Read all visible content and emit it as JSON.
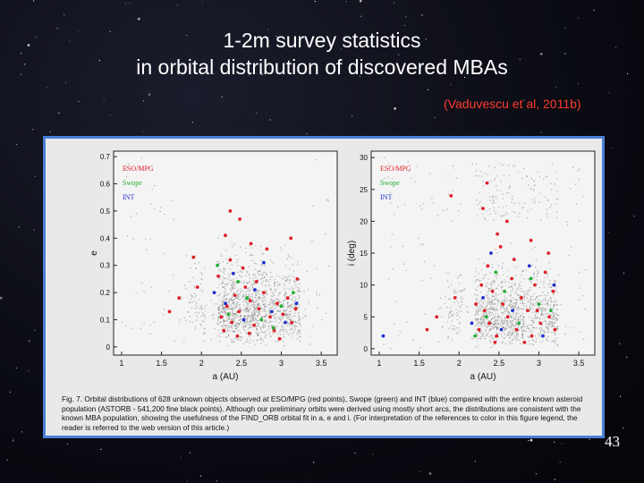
{
  "slide": {
    "title_line1": "1-2m survey statistics",
    "title_line2": "in orbital distribution of discovered MBAs",
    "citation": "(Vaduvescu et al, 2011b)",
    "page_number": "43"
  },
  "figure": {
    "caption": "Fig. 7.  Orbital distributions of 628 unknown objects observed at ESO/MPG (red points), Swope (green) and INT (blue) compared with the entire known asteroid population (ASTORB - 541,200 fine black points). Although our preliminary orbits were derived using mostly short arcs, the distributions are consistent with the known MBA population, showing the usefulness of the FIND_ORB orbital fit in a, e and i. (For interpretation of the references to color in this figure legend, the reader is referred to the web version of this article.)"
  },
  "colors": {
    "eso": "#e0202a",
    "swope": "#22b030",
    "int": "#2030d0",
    "background_points": "#7a7a7a",
    "frame": "#4a7fd6"
  },
  "chart_data": [
    {
      "type": "scatter",
      "xlabel": "a (AU)",
      "ylabel": "e",
      "xlim": [
        0.9,
        3.7
      ],
      "ylim": [
        -0.03,
        0.72
      ],
      "xticks": [
        "1",
        "1.5",
        "2",
        "2.5",
        "3",
        "3.5"
      ],
      "yticks": [
        "0",
        "0.1",
        "0.2",
        "0.3",
        "0.4",
        "0.5",
        "0.6",
        "0.7"
      ],
      "legend": [
        "ESO/MPG",
        "Swope",
        "INT"
      ],
      "legend_position": "top-left",
      "series": [
        {
          "name": "ESO/MPG",
          "points": [
            [
              2.25,
              0.11
            ],
            [
              2.32,
              0.15
            ],
            [
              2.38,
              0.09
            ],
            [
              2.42,
              0.19
            ],
            [
              2.47,
              0.13
            ],
            [
              2.55,
              0.22
            ],
            [
              2.61,
              0.17
            ],
            [
              2.66,
              0.08
            ],
            [
              2.72,
              0.14
            ],
            [
              2.78,
              0.2
            ],
            [
              2.86,
              0.11
            ],
            [
              2.91,
              0.06
            ],
            [
              2.95,
              0.16
            ],
            [
              3.02,
              0.12
            ],
            [
              3.08,
              0.18
            ],
            [
              3.13,
              0.09
            ],
            [
              3.18,
              0.14
            ],
            [
              2.21,
              0.26
            ],
            [
              2.36,
              0.32
            ],
            [
              2.52,
              0.29
            ],
            [
              2.69,
              0.24
            ],
            [
              2.36,
              0.5
            ],
            [
              2.48,
              0.47
            ],
            [
              2.3,
              0.41
            ],
            [
              2.62,
              0.38
            ],
            [
              1.9,
              0.33
            ],
            [
              1.95,
              0.22
            ],
            [
              1.72,
              0.18
            ],
            [
              1.6,
              0.13
            ],
            [
              2.82,
              0.36
            ],
            [
              3.12,
              0.4
            ],
            [
              2.45,
              0.04
            ],
            [
              2.6,
              0.05
            ],
            [
              2.28,
              0.06
            ],
            [
              2.98,
              0.03
            ],
            [
              3.2,
              0.25
            ]
          ]
        },
        {
          "name": "Swope",
          "points": [
            [
              2.34,
              0.12
            ],
            [
              2.57,
              0.18
            ],
            [
              2.75,
              0.1
            ],
            [
              3.0,
              0.15
            ],
            [
              2.46,
              0.24
            ],
            [
              2.2,
              0.3
            ],
            [
              2.9,
              0.07
            ],
            [
              3.15,
              0.2
            ]
          ]
        },
        {
          "name": "INT",
          "points": [
            [
              2.3,
              0.16
            ],
            [
              2.53,
              0.1
            ],
            [
              2.67,
              0.21
            ],
            [
              2.88,
              0.13
            ],
            [
              3.05,
              0.09
            ],
            [
              2.4,
              0.27
            ],
            [
              2.16,
              0.2
            ],
            [
              3.19,
              0.16
            ],
            [
              2.78,
              0.31
            ]
          ]
        }
      ]
    },
    {
      "type": "scatter",
      "xlabel": "a (AU)",
      "ylabel": "i (deg)",
      "xlim": [
        0.9,
        3.7
      ],
      "ylim": [
        -1,
        31
      ],
      "xticks": [
        "1",
        "1.5",
        "2",
        "2.5",
        "3",
        "3.5"
      ],
      "yticks": [
        "0",
        "5",
        "10",
        "15",
        "20",
        "25",
        "30"
      ],
      "legend": [
        "ESO/MPG",
        "Swope",
        "INT"
      ],
      "legend_position": "top-left",
      "series": [
        {
          "name": "ESO/MPG",
          "points": [
            [
              2.25,
              3
            ],
            [
              2.32,
              6
            ],
            [
              2.38,
              4
            ],
            [
              2.42,
              9
            ],
            [
              2.47,
              2
            ],
            [
              2.55,
              7
            ],
            [
              2.61,
              5
            ],
            [
              2.66,
              11
            ],
            [
              2.72,
              3
            ],
            [
              2.78,
              8
            ],
            [
              2.86,
              6
            ],
            [
              2.91,
              2
            ],
            [
              2.95,
              10
            ],
            [
              3.02,
              4
            ],
            [
              3.08,
              12
            ],
            [
              3.13,
              5
            ],
            [
              3.18,
              9
            ],
            [
              2.21,
              7
            ],
            [
              2.36,
              13
            ],
            [
              2.52,
              16
            ],
            [
              2.69,
              14
            ],
            [
              2.3,
              22
            ],
            [
              2.48,
              18
            ],
            [
              1.9,
              24
            ],
            [
              1.95,
              8
            ],
            [
              1.72,
              5
            ],
            [
              1.6,
              3
            ],
            [
              2.82,
              1
            ],
            [
              3.12,
              15
            ],
            [
              2.45,
              1
            ],
            [
              2.6,
              20
            ],
            [
              2.28,
              10
            ],
            [
              2.98,
              6
            ],
            [
              3.2,
              3
            ],
            [
              2.9,
              17
            ],
            [
              2.35,
              26
            ]
          ]
        },
        {
          "name": "Swope",
          "points": [
            [
              2.34,
              5
            ],
            [
              2.57,
              9
            ],
            [
              2.75,
              4
            ],
            [
              3.0,
              7
            ],
            [
              2.46,
              12
            ],
            [
              2.2,
              2
            ],
            [
              2.9,
              11
            ],
            [
              3.15,
              6
            ]
          ]
        },
        {
          "name": "INT",
          "points": [
            [
              2.3,
              8
            ],
            [
              2.53,
              3
            ],
            [
              2.67,
              6
            ],
            [
              2.88,
              13
            ],
            [
              3.05,
              2
            ],
            [
              2.4,
              15
            ],
            [
              2.16,
              4
            ],
            [
              3.19,
              10
            ],
            [
              1.05,
              2
            ]
          ]
        }
      ]
    }
  ]
}
